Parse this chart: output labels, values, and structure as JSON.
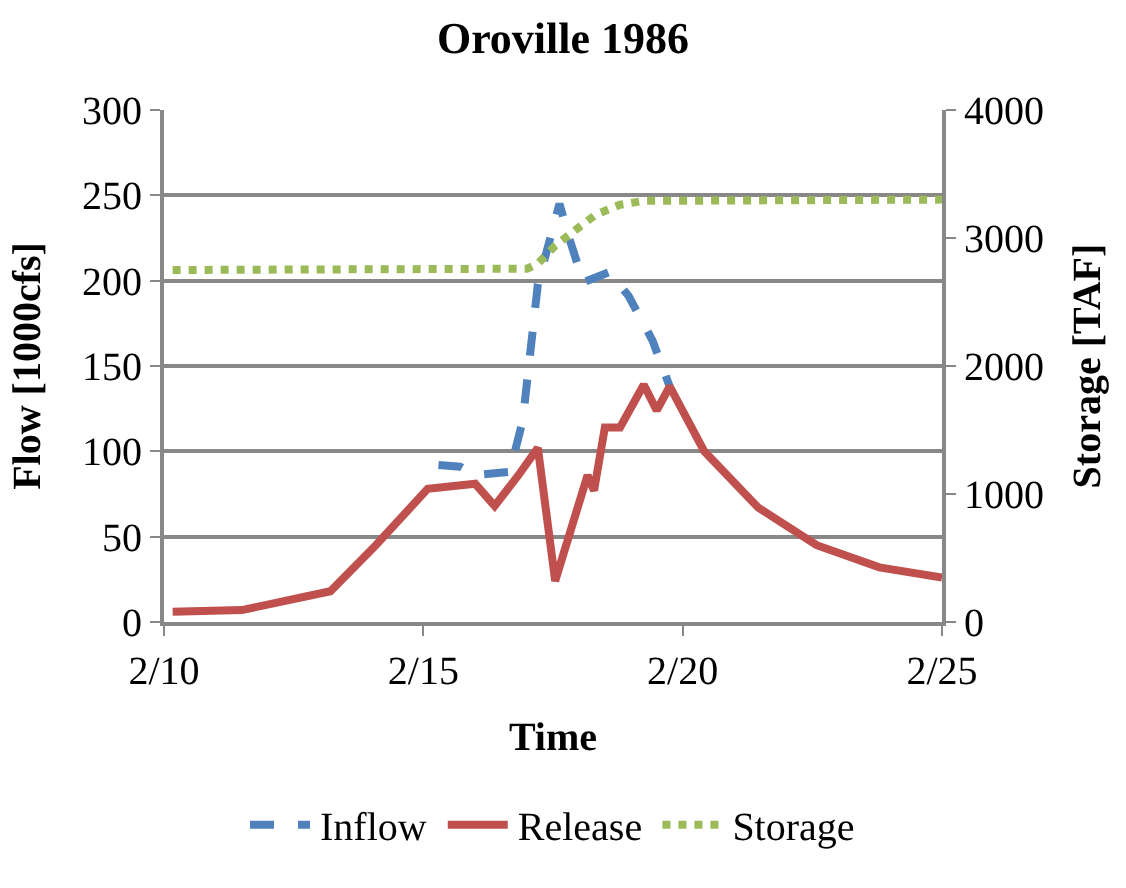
{
  "chart_data": {
    "type": "line",
    "title": "Oroville 1986",
    "xlabel": "Time",
    "ylabel": "Flow [1000cfs]",
    "y2label": "Storage [TAF]",
    "xlim": [
      "--02-10",
      "--02-25"
    ],
    "xticks": [
      {
        "value": "--02-10",
        "label": "2/10"
      },
      {
        "value": "--02-15",
        "label": "2/15"
      },
      {
        "value": "--02-20",
        "label": "2/20"
      },
      {
        "value": "--02-25",
        "label": "2/25"
      }
    ],
    "ylim": [
      0,
      300
    ],
    "yticks": [
      0,
      50,
      100,
      150,
      200,
      250,
      300
    ],
    "y2lim": [
      0,
      4000
    ],
    "y2ticks": [
      0,
      1000,
      2000,
      3000,
      4000
    ],
    "grid": "y",
    "legend": "bottom",
    "series": [
      {
        "name": "Inflow",
        "color": "#4f81bd",
        "line_style": "dashed",
        "x": [
          "--02-15T07:00",
          "--02-15T17:00",
          "--02-16T00:00",
          "--02-16T16:00",
          "--02-16T22:00",
          "--02-17T05:00",
          "--02-17T15:00",
          "--02-17T20:00",
          "--02-18T02:00",
          "--02-18T14:00",
          "--02-18T23:00",
          "--02-19T10:00",
          "--02-19T18:00"
        ],
        "values": [
          92,
          91,
          86,
          88,
          118,
          198,
          245,
          223,
          199,
          205,
          191,
          165,
          138
        ]
      },
      {
        "name": "Release",
        "color": "#c0504d",
        "line_style": "solid",
        "x": [
          "--02-10T04:00",
          "--02-11T12:00",
          "--02-13T05:00",
          "--02-14T02:00",
          "--02-15T02:00",
          "--02-16T00:00",
          "--02-16T09:00",
          "--02-16T20:00",
          "--02-17T05:00",
          "--02-17T13:00",
          "--02-18T04:00",
          "--02-18T07:00",
          "--02-18T12:00",
          "--02-18T19:00",
          "--02-19T06:00",
          "--02-19T12:00",
          "--02-19T18:00",
          "--02-20T10:00",
          "--02-21T11:00",
          "--02-22T14:00",
          "--02-23T19:00",
          "--02-25T00:00"
        ],
        "values": [
          6,
          7,
          18,
          45,
          78,
          81,
          68,
          86,
          102,
          24,
          86,
          77,
          114,
          114,
          139,
          124,
          138,
          100,
          67,
          45,
          32,
          26
        ]
      },
      {
        "name": "Storage",
        "color": "#9bbb59",
        "line_style": "dotted",
        "axis": "y2",
        "x": [
          "--02-10T04:00",
          "--02-17T00:00",
          "--02-17T05:00",
          "--02-17T13:00",
          "--02-17T23:00",
          "--02-18T08:00",
          "--02-18T19:00",
          "--02-19T06:00",
          "--02-25T00:00"
        ],
        "values": [
          2750,
          2760,
          2800,
          2940,
          3070,
          3185,
          3260,
          3290,
          3300
        ]
      }
    ]
  }
}
